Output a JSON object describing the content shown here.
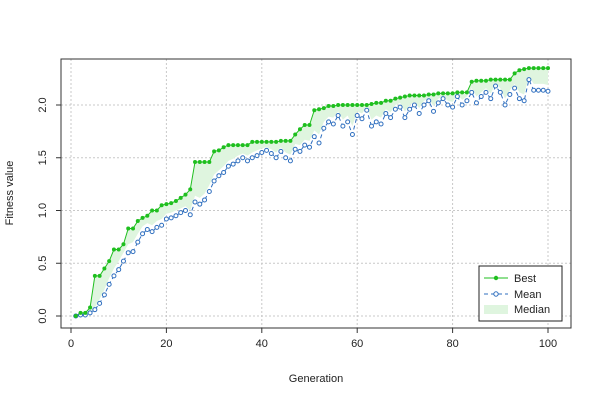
{
  "chart_data": {
    "type": "line",
    "title": "",
    "xlabel": "Generation",
    "ylabel": "Fitness value",
    "xlim": [
      0,
      100
    ],
    "ylim": [
      0,
      2.35
    ],
    "x_ticks": [
      0,
      20,
      40,
      60,
      80,
      100
    ],
    "x_tick_labels": [
      "0",
      "20",
      "40",
      "60",
      "80",
      "100"
    ],
    "y_ticks": [
      0,
      0.5,
      1.0,
      1.5,
      2.0
    ],
    "y_tick_labels": [
      "0.0",
      "0.5",
      "1.0",
      "1.5",
      "2.0"
    ],
    "grid": true,
    "legend_position": "bottom-right",
    "colors": {
      "best": "#1fbf1f",
      "mean": "#2f6fbf",
      "median_fill": "#dff5df",
      "grid": "#c8c8c8",
      "axis": "#333333"
    },
    "x": [
      1,
      2,
      3,
      4,
      5,
      6,
      7,
      8,
      9,
      10,
      11,
      12,
      13,
      14,
      15,
      16,
      17,
      18,
      19,
      20,
      21,
      22,
      23,
      24,
      25,
      26,
      27,
      28,
      29,
      30,
      31,
      32,
      33,
      34,
      35,
      36,
      37,
      38,
      39,
      40,
      41,
      42,
      43,
      44,
      45,
      46,
      47,
      48,
      49,
      50,
      51,
      52,
      53,
      54,
      55,
      56,
      57,
      58,
      59,
      60,
      61,
      62,
      63,
      64,
      65,
      66,
      67,
      68,
      69,
      70,
      71,
      72,
      73,
      74,
      75,
      76,
      77,
      78,
      79,
      80,
      81,
      82,
      83,
      84,
      85,
      86,
      87,
      88,
      89,
      90,
      91,
      92,
      93,
      94,
      95,
      96,
      97,
      98,
      99,
      100
    ],
    "series": [
      {
        "name": "Best",
        "style": "solid-filled-dots",
        "values": [
          0.0,
          0.03,
          0.03,
          0.08,
          0.38,
          0.38,
          0.45,
          0.52,
          0.63,
          0.63,
          0.68,
          0.83,
          0.83,
          0.9,
          0.93,
          0.95,
          1.0,
          1.0,
          1.05,
          1.06,
          1.07,
          1.09,
          1.12,
          1.15,
          1.2,
          1.46,
          1.46,
          1.46,
          1.46,
          1.56,
          1.57,
          1.6,
          1.62,
          1.62,
          1.62,
          1.62,
          1.62,
          1.65,
          1.65,
          1.65,
          1.65,
          1.65,
          1.65,
          1.66,
          1.66,
          1.66,
          1.72,
          1.77,
          1.81,
          1.81,
          1.95,
          1.96,
          1.97,
          1.99,
          1.99,
          2.0,
          2.0,
          2.0,
          2.0,
          2.0,
          2.0,
          2.0,
          2.01,
          2.02,
          2.02,
          2.04,
          2.04,
          2.06,
          2.07,
          2.08,
          2.09,
          2.09,
          2.09,
          2.09,
          2.1,
          2.1,
          2.11,
          2.11,
          2.11,
          2.11,
          2.12,
          2.12,
          2.12,
          2.22,
          2.23,
          2.23,
          2.23,
          2.24,
          2.24,
          2.24,
          2.24,
          2.24,
          2.3,
          2.33,
          2.34,
          2.35,
          2.35,
          2.35,
          2.35,
          2.35
        ]
      },
      {
        "name": "Mean",
        "style": "dashed-open-dots",
        "values": [
          0.0,
          0.01,
          0.01,
          0.03,
          0.06,
          0.12,
          0.2,
          0.3,
          0.38,
          0.44,
          0.52,
          0.6,
          0.61,
          0.7,
          0.78,
          0.82,
          0.8,
          0.84,
          0.86,
          0.92,
          0.93,
          0.95,
          0.98,
          1.0,
          0.96,
          1.08,
          1.06,
          1.1,
          1.18,
          1.28,
          1.33,
          1.36,
          1.42,
          1.44,
          1.47,
          1.5,
          1.47,
          1.5,
          1.52,
          1.55,
          1.57,
          1.54,
          1.5,
          1.56,
          1.5,
          1.47,
          1.58,
          1.56,
          1.62,
          1.6,
          1.7,
          1.64,
          1.78,
          1.84,
          1.82,
          1.9,
          1.8,
          1.84,
          1.72,
          1.9,
          1.87,
          1.95,
          1.8,
          1.84,
          1.82,
          1.92,
          1.88,
          1.96,
          1.98,
          1.88,
          1.96,
          2.0,
          1.92,
          2.0,
          2.04,
          1.94,
          2.02,
          2.06,
          2.0,
          1.98,
          2.08,
          2.0,
          2.04,
          2.12,
          2.02,
          2.08,
          2.12,
          2.06,
          2.18,
          2.12,
          2.0,
          2.1,
          2.16,
          2.06,
          2.04,
          2.24,
          2.14,
          2.14,
          2.14,
          2.13
        ]
      },
      {
        "name": "Median",
        "style": "band",
        "values": [
          0.0,
          0.01,
          0.01,
          0.04,
          0.08,
          0.16,
          0.25,
          0.36,
          0.45,
          0.52,
          0.6,
          0.68,
          0.7,
          0.78,
          0.85,
          0.88,
          0.86,
          0.9,
          0.92,
          0.97,
          0.98,
          1.0,
          1.02,
          1.04,
          1.0,
          1.14,
          1.12,
          1.16,
          1.24,
          1.34,
          1.38,
          1.42,
          1.47,
          1.49,
          1.52,
          1.54,
          1.52,
          1.55,
          1.57,
          1.59,
          1.6,
          1.58,
          1.55,
          1.6,
          1.55,
          1.53,
          1.63,
          1.62,
          1.67,
          1.66,
          1.76,
          1.72,
          1.84,
          1.89,
          1.88,
          1.94,
          1.86,
          1.9,
          1.8,
          1.94,
          1.92,
          1.98,
          1.86,
          1.9,
          1.88,
          1.96,
          1.93,
          2.0,
          2.02,
          1.94,
          2.0,
          2.03,
          1.97,
          2.04,
          2.06,
          1.99,
          2.06,
          2.08,
          2.04,
          2.03,
          2.1,
          2.05,
          2.08,
          2.16,
          2.08,
          2.12,
          2.16,
          2.11,
          2.2,
          2.16,
          2.06,
          2.14,
          2.2,
          2.12,
          2.1,
          2.27,
          2.2,
          2.2,
          2.2,
          2.19
        ]
      }
    ]
  }
}
